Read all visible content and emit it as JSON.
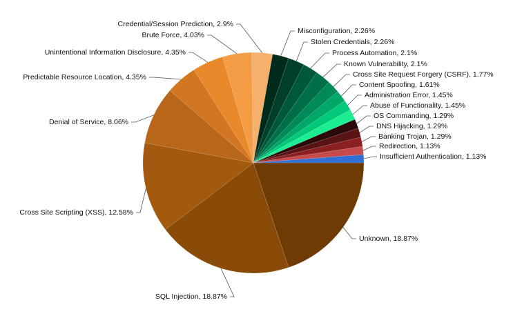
{
  "chart_data": {
    "type": "pie",
    "title": "",
    "start_angle_deg": 0,
    "direction": "clockwise",
    "slices": [
      {
        "label": "Unknown",
        "value": 18.87,
        "display": "Unknown, 18.87%",
        "color": "#6e3b05"
      },
      {
        "label": "SQL Injection",
        "value": 18.87,
        "display": "SQL Injection, 18.87%",
        "color": "#8a4b08"
      },
      {
        "label": "Cross Site Scripting (XSS)",
        "value": 12.58,
        "display": "Cross Site Scripting (XSS), 12.58%",
        "color": "#a3590e"
      },
      {
        "label": "Denial of Service",
        "value": 8.06,
        "display": "Denial of Service, 8.06%",
        "color": "#b8661a"
      },
      {
        "label": "Predictable Resource Location",
        "value": 4.35,
        "display": "Predictable Resource Location, 4.35%",
        "color": "#d27621"
      },
      {
        "label": "Unintentional Information Disclosure",
        "value": 4.35,
        "display": "Unintentional Information Disclosure, 4.35%",
        "color": "#e88a2c"
      },
      {
        "label": "Brute Force",
        "value": 4.03,
        "display": "Brute Force, 4.03%",
        "color": "#f39c44"
      },
      {
        "label": "Credential/Session Prediction",
        "value": 2.9,
        "display": "Credential/Session Prediction, 2.9%",
        "color": "#f6b06c"
      },
      {
        "label": "Misconfiguration",
        "value": 2.26,
        "display": "Misconfiguration, 2.26%",
        "color": "#002b1a"
      },
      {
        "label": "Stolen Credentials",
        "value": 2.26,
        "display": "Stolen Credentials, 2.26%",
        "color": "#00402a"
      },
      {
        "label": "Process Automation",
        "value": 2.1,
        "display": "Process Automation, 2.1%",
        "color": "#00583a"
      },
      {
        "label": "Known Vulnerability",
        "value": 2.1,
        "display": "Known Vulnerability, 2.1%",
        "color": "#006e48"
      },
      {
        "label": "Cross Site Request Forgery (CSRF)",
        "value": 1.77,
        "display": "Cross Site Request Forgery (CSRF), 1.77%",
        "color": "#008a58"
      },
      {
        "label": "Content Spoofing",
        "value": 1.61,
        "display": "Content Spoofing, 1.61%",
        "color": "#00a868"
      },
      {
        "label": "Administration Error",
        "value": 1.45,
        "display": "Administration Error, 1.45%",
        "color": "#00c97a"
      },
      {
        "label": "Abuse of Functionality",
        "value": 1.45,
        "display": "Abuse of Functionality, 1.45%",
        "color": "#1aee90"
      },
      {
        "label": "OS Commanding",
        "value": 1.29,
        "display": "OS Commanding, 1.29%",
        "color": "#2a0a0a"
      },
      {
        "label": "DNS Hijacking",
        "value": 1.29,
        "display": "DNS Hijacking, 1.29%",
        "color": "#5a1414"
      },
      {
        "label": "Banking Trojan",
        "value": 1.29,
        "display": "Banking Trojan, 1.29%",
        "color": "#8a2020"
      },
      {
        "label": "Redirection",
        "value": 1.13,
        "display": "Redirection, 1.13%",
        "color": "#c74b4b"
      },
      {
        "label": "Insufficient Authentication",
        "value": 1.13,
        "display": "Insufficient Authentication, 1.13%",
        "color": "#2f6fd6"
      }
    ]
  }
}
